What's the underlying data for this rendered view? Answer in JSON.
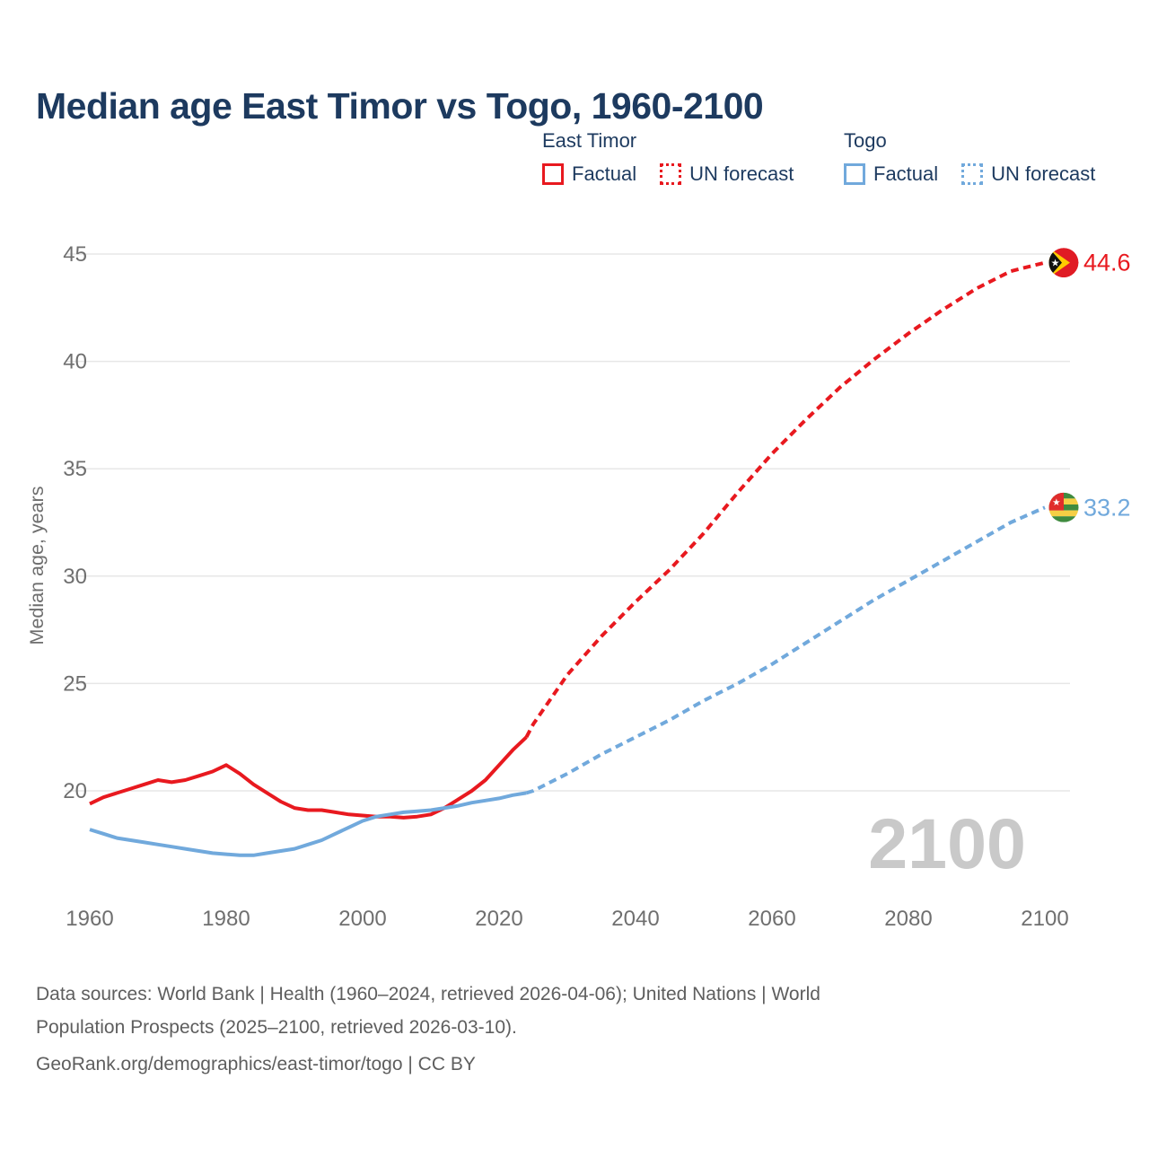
{
  "title": "Median age East Timor vs Togo, 1960-2100",
  "legend": {
    "groups": [
      {
        "name": "East Timor",
        "color": "#e8191f",
        "items": [
          {
            "label": "Factual",
            "style": "solid"
          },
          {
            "label": "UN forecast",
            "style": "dotted"
          }
        ]
      },
      {
        "name": "Togo",
        "color": "#71a9dc",
        "items": [
          {
            "label": "Factual",
            "style": "solid"
          },
          {
            "label": "UN forecast",
            "style": "dotted"
          }
        ]
      }
    ]
  },
  "y_axis": {
    "title": "Median age, years",
    "ticks": [
      20,
      25,
      30,
      35,
      40,
      45
    ]
  },
  "x_axis": {
    "ticks": [
      1960,
      1980,
      2000,
      2020,
      2040,
      2060,
      2080,
      2100
    ]
  },
  "watermark": "2100",
  "end_labels": [
    {
      "series": "East Timor",
      "value": "44.6",
      "flag": "east-timor-flag",
      "color": "#e8191f",
      "y_value": 44.6
    },
    {
      "series": "Togo",
      "value": "33.2",
      "flag": "togo-flag",
      "color": "#71a9dc",
      "y_value": 33.2
    }
  ],
  "footer": {
    "sources_line1": "Data sources: World Bank | Health (1960–2024, retrieved 2026-04-06); United Nations | World",
    "sources_line2": "Population Prospects (2025–2100, retrieved 2026-03-10).",
    "attribution": "GeoRank.org/demographics/east-timor/togo | CC BY"
  },
  "chart_data": {
    "type": "line",
    "title": "Median age East Timor vs Togo, 1960-2100",
    "xlabel": "",
    "ylabel": "Median age, years",
    "xlim": [
      1955,
      2112
    ],
    "ylim": [
      15.5,
      46.5
    ],
    "grid": "horizontal",
    "legend_position": "top",
    "series": [
      {
        "name": "East Timor — Factual",
        "color": "#e8191f",
        "style": "solid",
        "points": [
          [
            1960,
            19.4
          ],
          [
            1962,
            19.7
          ],
          [
            1964,
            19.9
          ],
          [
            1966,
            20.1
          ],
          [
            1968,
            20.3
          ],
          [
            1970,
            20.5
          ],
          [
            1972,
            20.4
          ],
          [
            1974,
            20.5
          ],
          [
            1976,
            20.7
          ],
          [
            1978,
            20.9
          ],
          [
            1980,
            21.2
          ],
          [
            1982,
            20.8
          ],
          [
            1984,
            20.3
          ],
          [
            1986,
            19.9
          ],
          [
            1988,
            19.5
          ],
          [
            1990,
            19.2
          ],
          [
            1992,
            19.1
          ],
          [
            1994,
            19.1
          ],
          [
            1996,
            19.0
          ],
          [
            1998,
            18.9
          ],
          [
            2000,
            18.85
          ],
          [
            2002,
            18.8
          ],
          [
            2004,
            18.8
          ],
          [
            2006,
            18.75
          ],
          [
            2008,
            18.8
          ],
          [
            2010,
            18.9
          ],
          [
            2012,
            19.2
          ],
          [
            2014,
            19.6
          ],
          [
            2016,
            20.0
          ],
          [
            2018,
            20.5
          ],
          [
            2020,
            21.2
          ],
          [
            2022,
            21.9
          ],
          [
            2024,
            22.5
          ]
        ]
      },
      {
        "name": "East Timor — UN forecast",
        "color": "#e8191f",
        "style": "dashed",
        "points": [
          [
            2024,
            22.5
          ],
          [
            2025,
            23.1
          ],
          [
            2030,
            25.4
          ],
          [
            2035,
            27.2
          ],
          [
            2040,
            28.8
          ],
          [
            2045,
            30.3
          ],
          [
            2050,
            32.0
          ],
          [
            2055,
            33.9
          ],
          [
            2060,
            35.7
          ],
          [
            2065,
            37.3
          ],
          [
            2070,
            38.8
          ],
          [
            2075,
            40.1
          ],
          [
            2080,
            41.3
          ],
          [
            2085,
            42.4
          ],
          [
            2090,
            43.4
          ],
          [
            2095,
            44.2
          ],
          [
            2100,
            44.6
          ]
        ]
      },
      {
        "name": "Togo — Factual",
        "color": "#71a9dc",
        "style": "solid",
        "points": [
          [
            1960,
            18.2
          ],
          [
            1962,
            18.0
          ],
          [
            1964,
            17.8
          ],
          [
            1966,
            17.7
          ],
          [
            1968,
            17.6
          ],
          [
            1970,
            17.5
          ],
          [
            1972,
            17.4
          ],
          [
            1974,
            17.3
          ],
          [
            1976,
            17.2
          ],
          [
            1978,
            17.1
          ],
          [
            1980,
            17.05
          ],
          [
            1982,
            17.0
          ],
          [
            1984,
            17.0
          ],
          [
            1986,
            17.1
          ],
          [
            1988,
            17.2
          ],
          [
            1990,
            17.3
          ],
          [
            1992,
            17.5
          ],
          [
            1994,
            17.7
          ],
          [
            1996,
            18.0
          ],
          [
            1998,
            18.3
          ],
          [
            2000,
            18.6
          ],
          [
            2002,
            18.8
          ],
          [
            2004,
            18.9
          ],
          [
            2006,
            19.0
          ],
          [
            2008,
            19.05
          ],
          [
            2010,
            19.1
          ],
          [
            2012,
            19.2
          ],
          [
            2014,
            19.3
          ],
          [
            2016,
            19.45
          ],
          [
            2018,
            19.55
          ],
          [
            2020,
            19.65
          ],
          [
            2022,
            19.8
          ],
          [
            2024,
            19.9
          ]
        ]
      },
      {
        "name": "Togo — UN forecast",
        "color": "#71a9dc",
        "style": "dashed",
        "points": [
          [
            2024,
            19.9
          ],
          [
            2025,
            20.0
          ],
          [
            2030,
            20.8
          ],
          [
            2035,
            21.7
          ],
          [
            2040,
            22.5
          ],
          [
            2045,
            23.3
          ],
          [
            2050,
            24.2
          ],
          [
            2055,
            25.0
          ],
          [
            2060,
            25.9
          ],
          [
            2065,
            26.9
          ],
          [
            2070,
            27.9
          ],
          [
            2075,
            28.9
          ],
          [
            2080,
            29.8
          ],
          [
            2085,
            30.7
          ],
          [
            2090,
            31.6
          ],
          [
            2095,
            32.5
          ],
          [
            2100,
            33.2
          ]
        ]
      }
    ],
    "end_labels": [
      {
        "series": "East Timor",
        "value": 44.6
      },
      {
        "series": "Togo",
        "value": 33.2
      }
    ]
  }
}
